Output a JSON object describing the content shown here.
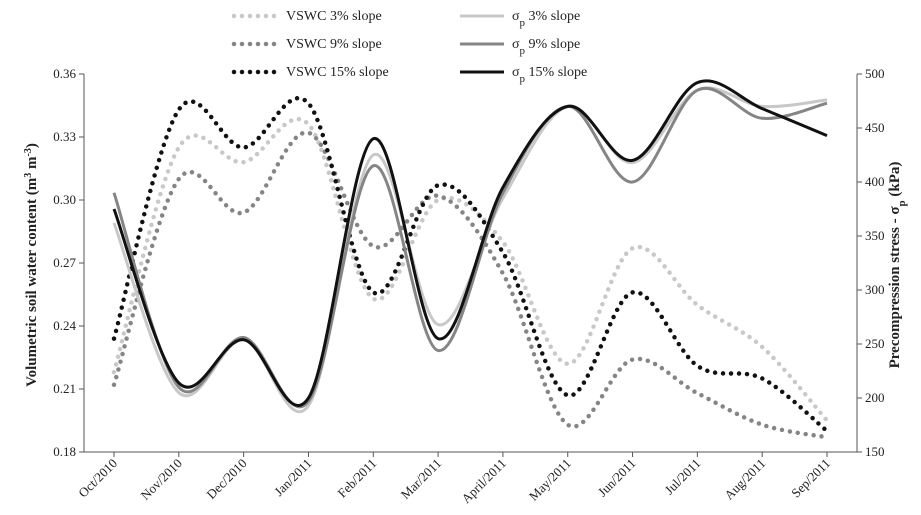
{
  "chart_data": {
    "type": "line",
    "categories": [
      "Oct/2010",
      "Nov/2010",
      "Dec/2010",
      "Jan/2011",
      "Feb/2011",
      "Mar/2011",
      "April/2011",
      "May/2011",
      "Jun/2011",
      "Jul/2011",
      "Aug/2011",
      "Sep/2011"
    ],
    "ylabel_left": {
      "main": "Volumetric soil water content (m",
      "sup1": "3",
      "mid": " m",
      "sup2": "-3",
      "end": ")"
    },
    "ylabel_right": {
      "main": "Precompression stress - σ",
      "sub": "p",
      "end": " (kPa)"
    },
    "ylim_left": [
      0.18,
      0.36
    ],
    "yticks_left": [
      "0.18",
      "0.21",
      "0.24",
      "0.27",
      "0.30",
      "0.33",
      "0.36"
    ],
    "ylim_right": [
      150,
      500
    ],
    "yticks_right": [
      "150",
      "200",
      "250",
      "300",
      "350",
      "400",
      "450",
      "500"
    ],
    "grid": false,
    "legend_position": "top",
    "series": [
      {
        "name": "VSWC 3% slope",
        "axis": "left",
        "style": "dotted",
        "color": "#c8c8c8",
        "values": [
          0.218,
          0.325,
          0.318,
          0.336,
          0.253,
          0.3,
          0.28,
          0.222,
          0.277,
          0.25,
          0.23,
          0.195
        ]
      },
      {
        "name": "VSWC 9% slope",
        "axis": "left",
        "style": "dotted",
        "color": "#858585",
        "values": [
          0.212,
          0.31,
          0.294,
          0.332,
          0.278,
          0.302,
          0.265,
          0.193,
          0.224,
          0.208,
          0.193,
          0.187
        ]
      },
      {
        "name": "VSWC 15% slope",
        "axis": "left",
        "style": "dotted",
        "color": "#111111",
        "values": [
          0.234,
          0.343,
          0.325,
          0.346,
          0.256,
          0.307,
          0.275,
          0.207,
          0.256,
          0.221,
          0.215,
          0.19
        ]
      },
      {
        "name": "3% slope",
        "axis": "right",
        "style": "solid",
        "color": "#c8c8c8",
        "values": [
          362,
          205,
          254,
          193,
          425,
          268,
          385,
          470,
          418,
          485,
          470,
          476
        ]
      },
      {
        "name": "9% slope",
        "axis": "right",
        "style": "solid",
        "color": "#858585",
        "values": [
          390,
          210,
          256,
          197,
          415,
          244,
          390,
          470,
          400,
          485,
          459,
          473
        ]
      },
      {
        "name": "15% slope",
        "axis": "right",
        "style": "solid",
        "color": "#111111",
        "values": [
          375,
          214,
          254,
          200,
          440,
          255,
          395,
          470,
          420,
          492,
          468,
          443
        ]
      }
    ]
  },
  "legend": {
    "items": [
      {
        "label": "VSWC 3% slope",
        "color": "#c8c8c8",
        "style": "dotted"
      },
      {
        "label": "VSWC 9% slope",
        "color": "#858585",
        "style": "dotted"
      },
      {
        "label": "VSWC 15% slope",
        "color": "#111111",
        "style": "dotted"
      },
      {
        "label_prefix": "σ",
        "label_sub": "p",
        "label_suffix": " 3% slope",
        "color": "#c8c8c8",
        "style": "solid"
      },
      {
        "label_prefix": "σ",
        "label_sub": "p",
        "label_suffix": " 9% slope",
        "color": "#858585",
        "style": "solid"
      },
      {
        "label_prefix": "σ",
        "label_sub": "p",
        "label_suffix": " 15% slope",
        "color": "#111111",
        "style": "solid"
      }
    ]
  }
}
